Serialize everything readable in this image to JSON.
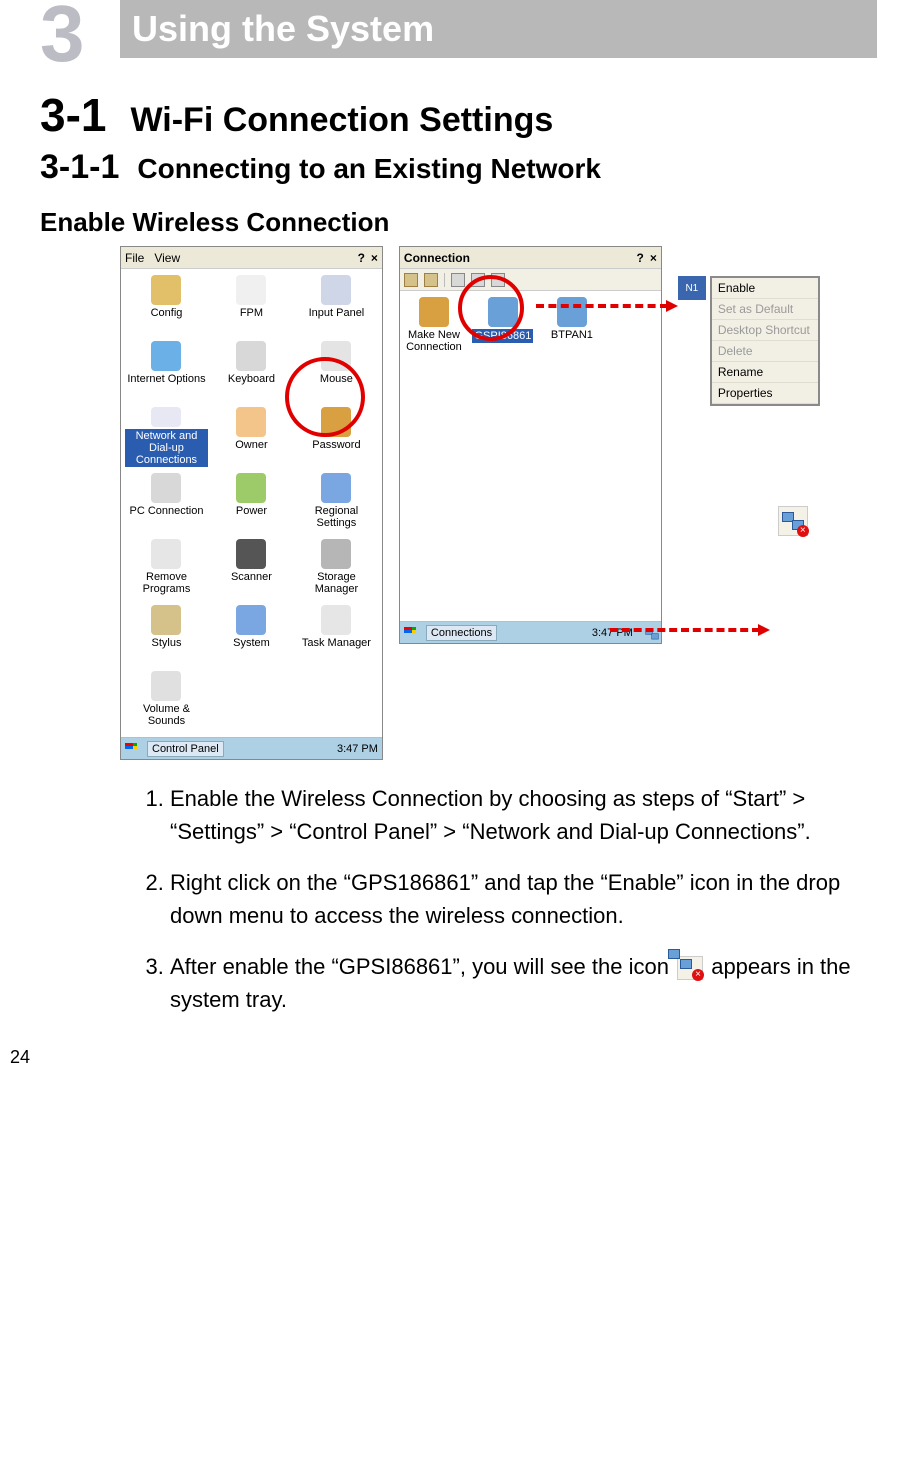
{
  "chapter": {
    "num": "3",
    "title": "Using the System"
  },
  "h1": {
    "num": "3-1",
    "title": "Wi-Fi Connection Settings"
  },
  "h2": {
    "num": "3-1-1",
    "title": "Connecting to an Existing Network"
  },
  "h3": "Enable Wireless Connection",
  "shot1": {
    "menu_file": "File",
    "menu_view": "View",
    "help": "?",
    "close": "×",
    "items": [
      {
        "label": "Config",
        "color": "#e2c06a"
      },
      {
        "label": "FPM",
        "color": "#f0f0f0"
      },
      {
        "label": "Input Panel",
        "color": "#cfd6e8"
      },
      {
        "label": "Internet Options",
        "color": "#6bb1e8"
      },
      {
        "label": "Keyboard",
        "color": "#d8d8d8"
      },
      {
        "label": "Mouse",
        "color": "#e4e4e4"
      },
      {
        "label": "Network and Dial-up Connections",
        "color": "#e8e8f5",
        "highlight": true
      },
      {
        "label": "Owner",
        "color": "#f4c58a"
      },
      {
        "label": "Password",
        "color": "#d8a040"
      },
      {
        "label": "PC Connection",
        "color": "#d8d8d8"
      },
      {
        "label": "Power",
        "color": "#9ecb6a"
      },
      {
        "label": "Regional Settings",
        "color": "#7aa7e2"
      },
      {
        "label": "Remove Programs",
        "color": "#e6e6e6"
      },
      {
        "label": "Scanner",
        "color": "#555"
      },
      {
        "label": "Storage Manager",
        "color": "#b6b6b6"
      },
      {
        "label": "Stylus",
        "color": "#d4c28a"
      },
      {
        "label": "System",
        "color": "#7aa7e2"
      },
      {
        "label": "Task Manager",
        "color": "#e6e6e6"
      },
      {
        "label": "Volume & Sounds",
        "color": "#e0e0e0"
      }
    ],
    "taskbar_label": "Control Panel",
    "taskbar_time": "3:47 PM"
  },
  "shot2": {
    "title": "Connection",
    "help": "?",
    "close": "×",
    "icons": {
      "make_new": "Make New Connection",
      "selected": "GSPI86861",
      "btpan": "BTPAN1"
    },
    "taskbar_label": "Connections",
    "taskbar_time": "3:47 PM"
  },
  "ctx": {
    "enable": "Enable",
    "set_default": "Set as Default",
    "shortcut": "Desktop Shortcut",
    "delete": "Delete",
    "rename": "Rename",
    "properties": "Properties"
  },
  "steps": {
    "s1": "Enable the Wireless Connection by choosing as steps of “Start” > “Settings” > “Control Panel” > “Network and Dial-up Connections”.",
    "s2": "Right click on the “GPS186861” and tap the “Enable” icon in the drop down menu to access the wireless connection.",
    "s3a": "After enable the “GPSI86861”, you will see the icon",
    "s3b": "appears in the system tray."
  },
  "page_number": "24"
}
